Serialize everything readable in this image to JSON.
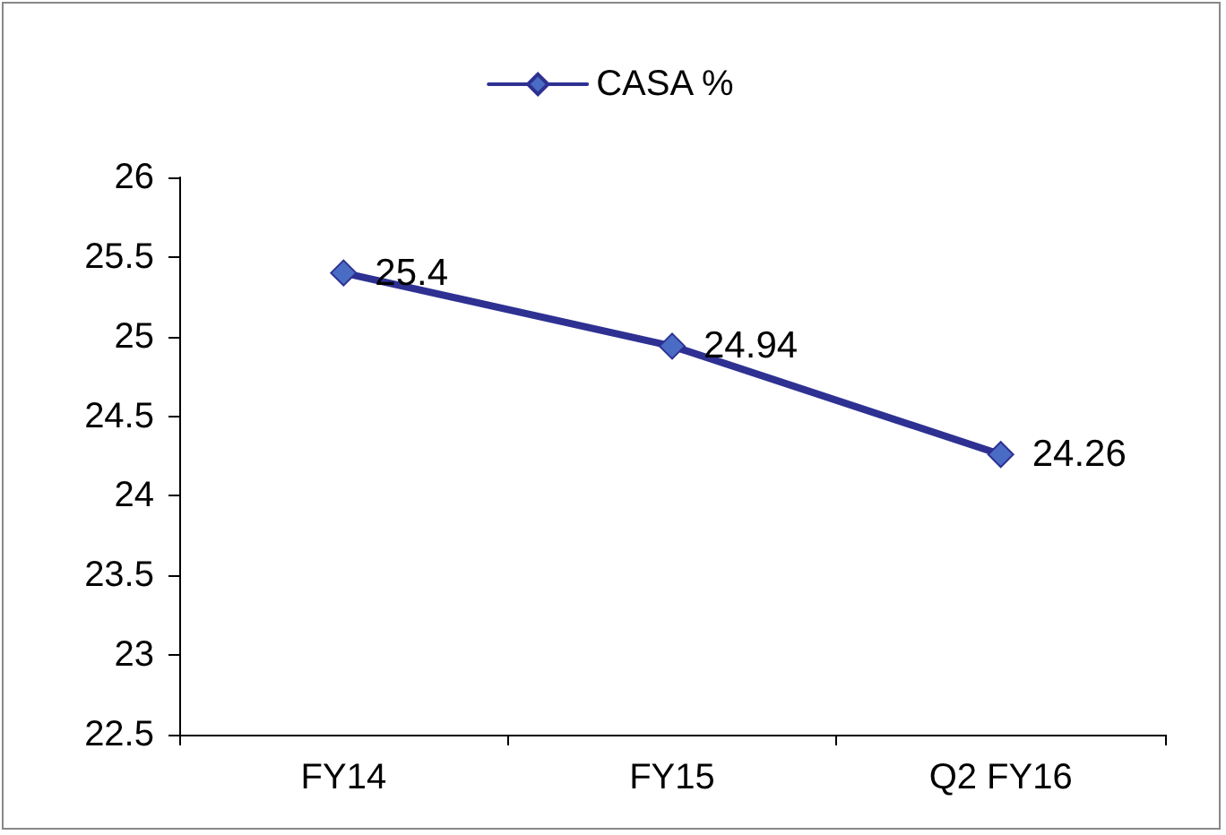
{
  "chart_data": {
    "type": "line",
    "categories": [
      "FY14",
      "FY15",
      "Q2 FY16"
    ],
    "series": [
      {
        "name": "CASA %",
        "color": "#2e3192",
        "values": [
          25.4,
          24.94,
          24.26
        ]
      }
    ],
    "ylim": [
      22.5,
      26
    ],
    "yticks": [
      22.5,
      23,
      23.5,
      24,
      24.5,
      25,
      25.5,
      26
    ],
    "marker": "diamond",
    "data_labels": true,
    "legend": "top",
    "grid": false
  }
}
